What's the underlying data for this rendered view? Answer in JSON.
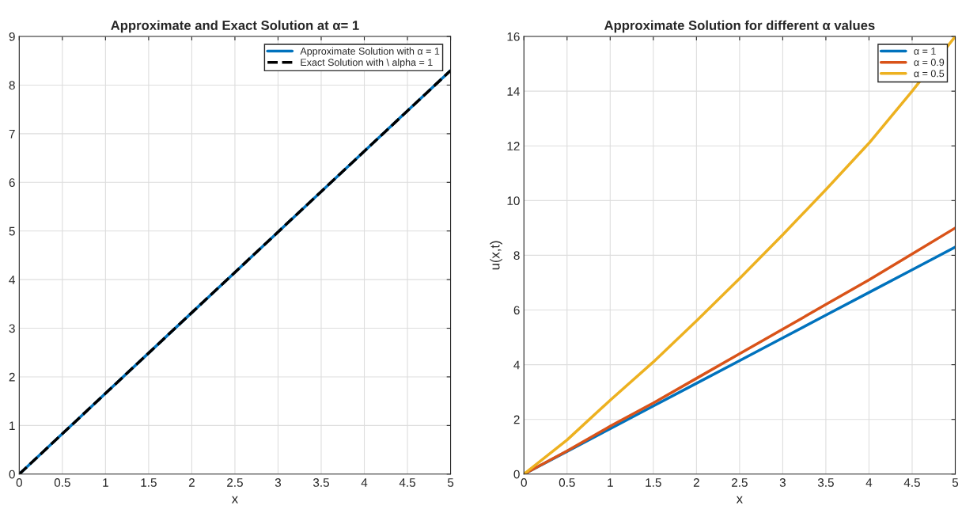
{
  "chart_data": [
    {
      "type": "line",
      "title": "Approximate and Exact Solution at α= 1",
      "xlabel": "x",
      "x": [
        0,
        0.5,
        1,
        1.5,
        2,
        2.5,
        3,
        3.5,
        4,
        4.5,
        5
      ],
      "series": [
        {
          "name": "Approximate Solution with α = 1",
          "color": "#0072bd",
          "line_style": "solid",
          "values": [
            0,
            0.83,
            1.66,
            2.49,
            3.32,
            4.15,
            4.98,
            5.81,
            6.64,
            7.47,
            8.3
          ]
        },
        {
          "name": "Exact Solution with \\ alpha = 1",
          "color": "#000000",
          "line_style": "dashed",
          "values": [
            0,
            0.83,
            1.66,
            2.49,
            3.32,
            4.15,
            4.98,
            5.81,
            6.64,
            7.47,
            8.3
          ]
        }
      ],
      "xlim": [
        0,
        5
      ],
      "ylim": [
        0,
        9
      ],
      "xticks": [
        0,
        0.5,
        1,
        1.5,
        2,
        2.5,
        3,
        3.5,
        4,
        4.5,
        5
      ],
      "yticks": [
        0,
        1,
        2,
        3,
        4,
        5,
        6,
        7,
        8,
        9
      ],
      "grid": true,
      "legend": "top right"
    },
    {
      "type": "line",
      "title": "Approximate Solution for different α values",
      "xlabel": "x",
      "ylabel": "u(x,t)",
      "x": [
        0,
        0.5,
        1,
        1.5,
        2,
        2.5,
        3,
        3.5,
        4,
        4.5,
        5
      ],
      "series": [
        {
          "name": "α = 1",
          "color": "#0072bd",
          "values": [
            0,
            0.83,
            1.66,
            2.49,
            3.32,
            4.15,
            4.98,
            5.81,
            6.64,
            7.47,
            8.3
          ]
        },
        {
          "name": "α = 0.9",
          "color": "#d95319",
          "values": [
            0,
            0.85,
            1.75,
            2.6,
            3.5,
            4.4,
            5.3,
            6.2,
            7.1,
            8.05,
            9.0
          ]
        },
        {
          "name": "α = 0.5",
          "color": "#edb120",
          "values": [
            0,
            1.25,
            2.7,
            4.1,
            5.6,
            7.15,
            8.75,
            10.4,
            12.1,
            14.0,
            16.0
          ]
        }
      ],
      "xlim": [
        0,
        5
      ],
      "ylim": [
        0,
        16
      ],
      "xticks": [
        0,
        0.5,
        1,
        1.5,
        2,
        2.5,
        3,
        3.5,
        4,
        4.5,
        5
      ],
      "yticks": [
        0,
        2,
        4,
        6,
        8,
        10,
        12,
        14,
        16
      ],
      "grid": true,
      "legend": "top right"
    }
  ]
}
